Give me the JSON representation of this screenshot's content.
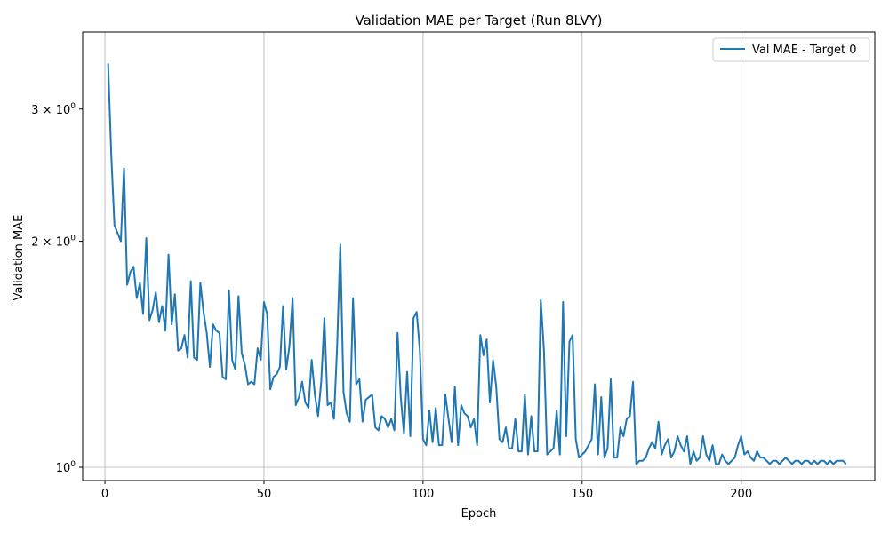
{
  "chart_data": {
    "type": "line",
    "title": "Validation MAE per Target (Run 8LVY)",
    "xlabel": "Epoch",
    "ylabel": "Validation MAE",
    "yscale": "log",
    "xlim": [
      -7,
      242
    ],
    "ylim": [
      0.96,
      3.8
    ],
    "grid": "x-major",
    "legend": "top-right",
    "x_ticks": [
      0,
      50,
      100,
      150,
      200
    ],
    "x_tick_labels": [
      "0",
      "50",
      "100",
      "150",
      "200"
    ],
    "y_ticks": [
      1,
      2,
      3
    ],
    "y_tick_labels": [
      {
        "base": "10",
        "exp": "0"
      },
      {
        "pre": "2 × ",
        "base": "10",
        "exp": "0"
      },
      {
        "pre": "3 × ",
        "base": "10",
        "exp": "0"
      }
    ],
    "colors": {
      "series": "#1f77b4",
      "grid": "#b0b0b0"
    },
    "series": [
      {
        "name": "Val MAE - Target 0",
        "x_start": 1,
        "x_step": 1,
        "values": [
          3.45,
          2.6,
          2.1,
          2.05,
          2.0,
          2.5,
          1.75,
          1.82,
          1.85,
          1.68,
          1.76,
          1.6,
          2.02,
          1.57,
          1.62,
          1.71,
          1.56,
          1.64,
          1.52,
          1.92,
          1.55,
          1.7,
          1.43,
          1.44,
          1.5,
          1.4,
          1.77,
          1.4,
          1.39,
          1.76,
          1.61,
          1.51,
          1.36,
          1.55,
          1.52,
          1.51,
          1.32,
          1.31,
          1.72,
          1.39,
          1.35,
          1.69,
          1.42,
          1.37,
          1.29,
          1.3,
          1.29,
          1.44,
          1.39,
          1.66,
          1.6,
          1.27,
          1.32,
          1.33,
          1.36,
          1.64,
          1.35,
          1.45,
          1.68,
          1.21,
          1.24,
          1.3,
          1.22,
          1.2,
          1.39,
          1.25,
          1.17,
          1.3,
          1.58,
          1.21,
          1.22,
          1.16,
          1.45,
          1.98,
          1.26,
          1.18,
          1.15,
          1.68,
          1.29,
          1.31,
          1.15,
          1.23,
          1.24,
          1.25,
          1.13,
          1.12,
          1.17,
          1.16,
          1.13,
          1.16,
          1.12,
          1.51,
          1.24,
          1.11,
          1.34,
          1.1,
          1.58,
          1.61,
          1.43,
          1.09,
          1.07,
          1.19,
          1.08,
          1.2,
          1.07,
          1.07,
          1.25,
          1.16,
          1.08,
          1.28,
          1.07,
          1.21,
          1.18,
          1.17,
          1.13,
          1.16,
          1.07,
          1.5,
          1.41,
          1.48,
          1.22,
          1.39,
          1.28,
          1.09,
          1.08,
          1.13,
          1.06,
          1.06,
          1.16,
          1.05,
          1.05,
          1.25,
          1.04,
          1.17,
          1.05,
          1.05,
          1.67,
          1.43,
          1.04,
          1.05,
          1.06,
          1.19,
          1.04,
          1.66,
          1.1,
          1.47,
          1.5,
          1.09,
          1.03,
          1.04,
          1.05,
          1.07,
          1.09,
          1.29,
          1.04,
          1.24,
          1.03,
          1.06,
          1.31,
          1.03,
          1.03,
          1.13,
          1.1,
          1.16,
          1.17,
          1.3,
          1.01,
          1.02,
          1.02,
          1.03,
          1.06,
          1.08,
          1.06,
          1.15,
          1.04,
          1.07,
          1.09,
          1.03,
          1.05,
          1.1,
          1.07,
          1.05,
          1.1,
          1.01,
          1.05,
          1.02,
          1.03,
          1.1,
          1.04,
          1.02,
          1.07,
          1.01,
          1.01,
          1.04,
          1.02,
          1.01,
          1.02,
          1.03,
          1.07,
          1.1,
          1.04,
          1.05,
          1.03,
          1.02,
          1.05,
          1.03,
          1.03,
          1.02,
          1.01,
          1.02,
          1.02,
          1.01,
          1.02,
          1.03,
          1.02,
          1.01,
          1.02,
          1.02,
          1.01,
          1.02,
          1.02,
          1.01,
          1.02,
          1.01,
          1.02,
          1.02,
          1.01,
          1.02,
          1.01,
          1.02,
          1.02,
          1.02,
          1.01
        ]
      }
    ]
  }
}
